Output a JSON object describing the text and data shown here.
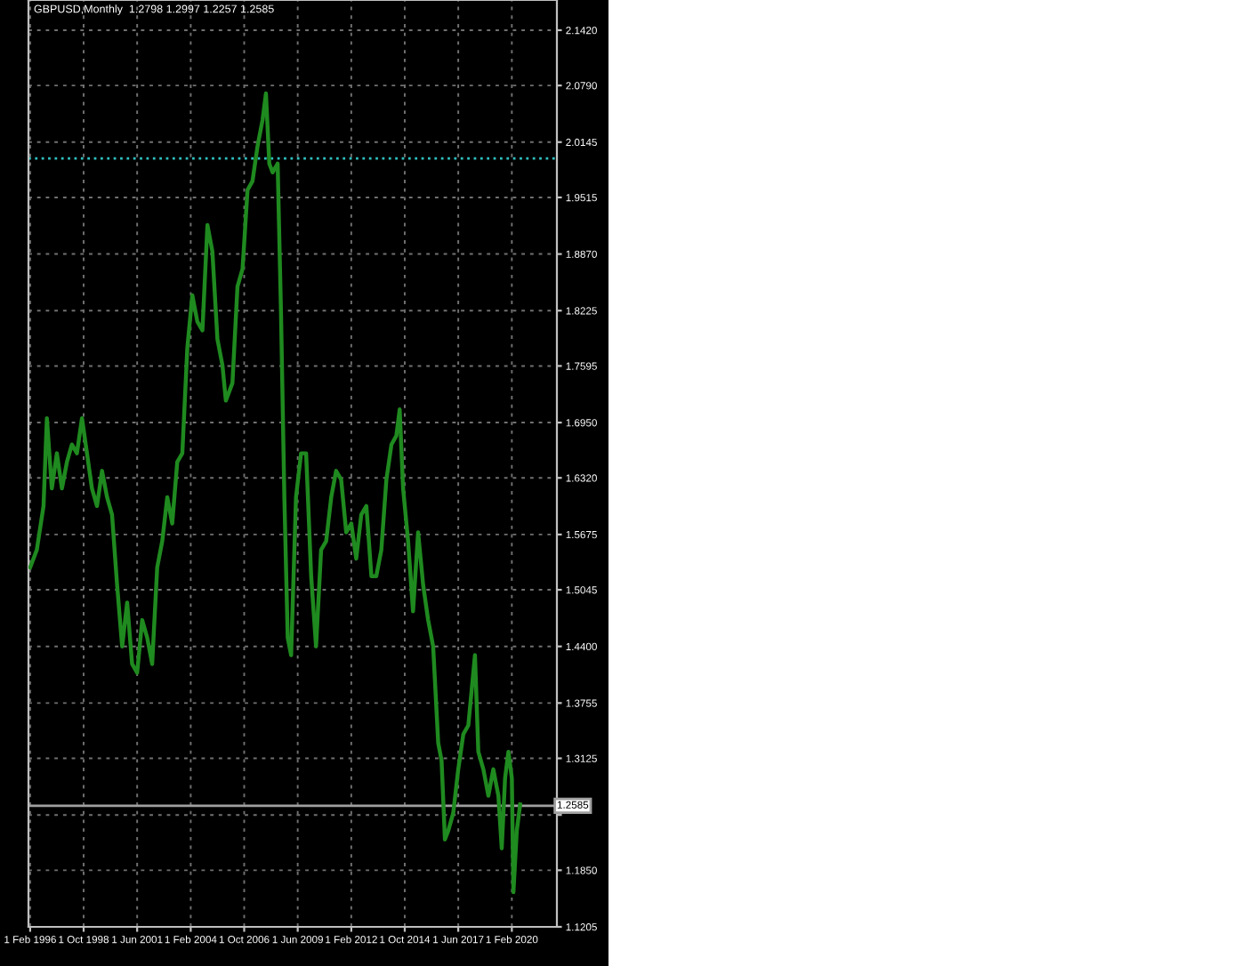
{
  "chart_data": {
    "type": "line",
    "title": "GBPUSD,Monthly  1.2798 1.2997 1.2257 1.2585",
    "x": [
      "1996-02",
      "1996-06",
      "1996-10",
      "1996-12",
      "1997-03",
      "1997-06",
      "1997-09",
      "1997-12",
      "1998-03",
      "1998-06",
      "1998-09",
      "1998-12",
      "1999-03",
      "1999-06",
      "1999-09",
      "1999-12",
      "2000-03",
      "2000-06",
      "2000-09",
      "2000-12",
      "2001-03",
      "2001-06",
      "2001-09",
      "2001-12",
      "2002-03",
      "2002-06",
      "2002-09",
      "2002-12",
      "2003-03",
      "2003-06",
      "2003-09",
      "2003-12",
      "2004-03",
      "2004-06",
      "2004-09",
      "2004-12",
      "2005-03",
      "2005-06",
      "2005-09",
      "2005-11",
      "2006-03",
      "2006-06",
      "2006-09",
      "2006-12",
      "2007-03",
      "2007-06",
      "2007-09",
      "2007-11",
      "2008-01",
      "2008-03",
      "2008-06",
      "2008-08",
      "2008-10",
      "2008-12",
      "2009-02",
      "2009-05",
      "2009-08",
      "2009-11",
      "2010-02",
      "2010-05",
      "2010-08",
      "2010-11",
      "2011-02",
      "2011-05",
      "2011-08",
      "2011-11",
      "2012-02",
      "2012-05",
      "2012-08",
      "2012-11",
      "2013-02",
      "2013-05",
      "2013-08",
      "2013-11",
      "2014-02",
      "2014-05",
      "2014-07",
      "2014-09",
      "2014-12",
      "2015-03",
      "2015-06",
      "2015-09",
      "2015-12",
      "2016-03",
      "2016-06",
      "2016-08",
      "2016-10",
      "2016-12",
      "2017-03",
      "2017-06",
      "2017-09",
      "2017-12",
      "2018-04",
      "2018-06",
      "2018-09",
      "2018-12",
      "2019-03",
      "2019-06",
      "2019-08",
      "2019-10",
      "2019-12",
      "2020-02",
      "2020-03",
      "2020-05",
      "2020-07"
    ],
    "series": [
      {
        "color": "#1f8a1f",
        "values": [
          1.53,
          1.55,
          1.6,
          1.7,
          1.62,
          1.66,
          1.62,
          1.65,
          1.67,
          1.66,
          1.7,
          1.66,
          1.62,
          1.6,
          1.64,
          1.61,
          1.59,
          1.51,
          1.44,
          1.49,
          1.42,
          1.41,
          1.47,
          1.45,
          1.42,
          1.53,
          1.56,
          1.61,
          1.58,
          1.65,
          1.66,
          1.78,
          1.84,
          1.81,
          1.8,
          1.92,
          1.89,
          1.79,
          1.76,
          1.72,
          1.74,
          1.85,
          1.87,
          1.96,
          1.97,
          2.01,
          2.04,
          2.07,
          1.99,
          1.98,
          1.99,
          1.82,
          1.61,
          1.45,
          1.43,
          1.61,
          1.66,
          1.66,
          1.52,
          1.44,
          1.55,
          1.56,
          1.61,
          1.64,
          1.63,
          1.57,
          1.58,
          1.54,
          1.59,
          1.6,
          1.52,
          1.52,
          1.55,
          1.63,
          1.67,
          1.68,
          1.71,
          1.62,
          1.56,
          1.48,
          1.57,
          1.51,
          1.47,
          1.44,
          1.33,
          1.31,
          1.22,
          1.23,
          1.25,
          1.3,
          1.34,
          1.35,
          1.43,
          1.32,
          1.3,
          1.27,
          1.3,
          1.27,
          1.21,
          1.29,
          1.32,
          1.29,
          1.16,
          1.23,
          1.26
        ]
      }
    ],
    "xlim": [
      "1996-01-01",
      "2022-05-01"
    ],
    "xticks": [
      {
        "value": "1996-02-01",
        "label": "1 Feb 1996"
      },
      {
        "value": "1998-10-01",
        "label": "1 Oct 1998"
      },
      {
        "value": "2001-06-01",
        "label": "1 Jun 2001"
      },
      {
        "value": "2004-02-01",
        "label": "1 Feb 2004"
      },
      {
        "value": "2006-10-01",
        "label": "1 Oct 2006"
      },
      {
        "value": "2009-06-01",
        "label": "1 Jun 2009"
      },
      {
        "value": "2012-02-01",
        "label": "1 Feb 2012"
      },
      {
        "value": "2014-10-01",
        "label": "1 Oct 2014"
      },
      {
        "value": "2017-06-01",
        "label": "1 Jun 2017"
      },
      {
        "value": "2020-02-01",
        "label": "1 Feb 2020"
      }
    ],
    "ylim": [
      1.1205,
      2.1764
    ],
    "yticks": [
      {
        "value": 1.1205,
        "label": "1.1205"
      },
      {
        "value": 1.185,
        "label": "1.1850"
      },
      {
        "value": 1.248,
        "label": null
      },
      {
        "value": 1.3125,
        "label": "1.3125"
      },
      {
        "value": 1.3755,
        "label": "1.3755"
      },
      {
        "value": 1.44,
        "label": "1.4400"
      },
      {
        "value": 1.5045,
        "label": "1.5045"
      },
      {
        "value": 1.5675,
        "label": "1.5675"
      },
      {
        "value": 1.632,
        "label": "1.6320"
      },
      {
        "value": 1.695,
        "label": "1.6950"
      },
      {
        "value": 1.7595,
        "label": "1.7595"
      },
      {
        "value": 1.8225,
        "label": "1.8225"
      },
      {
        "value": 1.887,
        "label": "1.8870"
      },
      {
        "value": 1.9515,
        "label": "1.9515"
      },
      {
        "value": 2.0145,
        "label": "2.0145"
      },
      {
        "value": 2.079,
        "label": "2.0790"
      },
      {
        "value": 2.142,
        "label": "2.1420"
      }
    ],
    "ref_lines": [
      {
        "axis": "y",
        "value": 1.996,
        "label": null,
        "color": "#30c0c0",
        "line_style": "dotted"
      },
      {
        "axis": "y",
        "value": 1.2585,
        "label": "1.2585",
        "color": "#a0a0a0",
        "line_style": "solid"
      }
    ],
    "grid": true,
    "line_style": "solid",
    "marker": "none"
  }
}
